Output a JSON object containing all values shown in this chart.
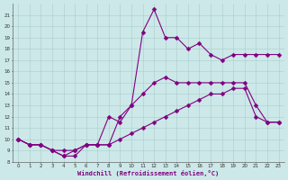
{
  "xlabel": "Windchill (Refroidissement éolien,°C)",
  "xlim": [
    -0.5,
    23.5
  ],
  "ylim": [
    8,
    22
  ],
  "yticks": [
    8,
    9,
    10,
    11,
    12,
    13,
    14,
    15,
    16,
    17,
    18,
    19,
    20,
    21
  ],
  "xticks": [
    0,
    1,
    2,
    3,
    4,
    5,
    6,
    7,
    8,
    9,
    10,
    11,
    12,
    13,
    14,
    15,
    16,
    17,
    18,
    19,
    20,
    21,
    22,
    23
  ],
  "bg_color": "#cce8e8",
  "line_color": "#800080",
  "grid_color": "#aacccc",
  "line1_x": [
    0,
    1,
    2,
    3,
    4,
    5,
    6,
    7,
    8,
    9,
    10,
    11,
    12,
    13,
    14,
    15,
    16,
    17,
    18,
    19,
    20,
    21,
    22,
    23
  ],
  "line1_y": [
    10,
    9.5,
    9.5,
    9,
    8.5,
    9,
    9.5,
    9.5,
    12,
    11.5,
    13,
    19.5,
    21.5,
    19,
    19,
    18,
    18.5,
    17.5,
    17,
    17.5,
    17.5,
    17.5,
    17.5,
    17.5
  ],
  "line2_x": [
    0,
    1,
    2,
    3,
    4,
    5,
    6,
    7,
    8,
    9,
    10,
    11,
    12,
    13,
    14,
    15,
    16,
    17,
    18,
    19,
    20,
    21,
    22,
    23
  ],
  "line2_y": [
    10,
    9.5,
    9.5,
    9,
    8.5,
    8.5,
    9.5,
    9.5,
    9.5,
    12,
    13,
    14,
    15,
    15.5,
    15,
    15,
    15,
    15,
    15,
    15,
    15,
    13,
    11.5,
    11.5
  ],
  "line3_x": [
    0,
    1,
    2,
    3,
    4,
    5,
    6,
    7,
    8,
    9,
    10,
    11,
    12,
    13,
    14,
    15,
    16,
    17,
    18,
    19,
    20,
    21,
    22,
    23
  ],
  "line3_y": [
    10,
    9.5,
    9.5,
    9,
    9,
    9,
    9.5,
    9.5,
    9.5,
    10,
    10.5,
    11,
    11.5,
    12,
    12.5,
    13,
    13.5,
    14,
    14,
    14.5,
    14.5,
    12,
    11.5,
    11.5
  ],
  "marker": "D",
  "marker_size": 2.5,
  "linewidth": 0.8
}
